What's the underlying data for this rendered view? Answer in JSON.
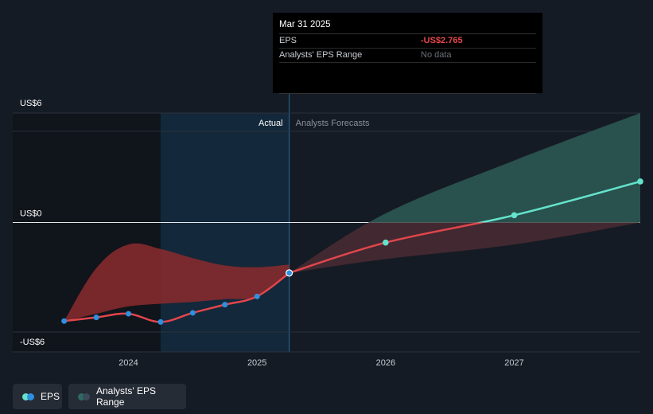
{
  "tooltip": {
    "date": "Mar 31 2025",
    "eps_label": "EPS",
    "eps_value": "-US$2.765",
    "range_label": "Analysts' EPS Range",
    "range_value": "No data"
  },
  "regions": {
    "actual_label": "Actual",
    "forecast_label": "Analysts Forecasts"
  },
  "legend": {
    "eps_label": "EPS",
    "range_label": "Analysts' EPS Range"
  },
  "colors": {
    "background": "#151b24",
    "eps_actual": "#e0464c",
    "eps_forecast": "#64e3cc",
    "actual_point": "#2f8fe0",
    "range_actual": "#8b2a2e",
    "range_forecast": "#2d5a55"
  },
  "chart_data": {
    "type": "line",
    "y_tick_labels": [
      "US$6",
      "US$0",
      "-US$6"
    ],
    "ylim": [
      -6,
      6
    ],
    "x_tick_labels": [
      "2024",
      "2025",
      "2026",
      "2027"
    ],
    "x_ticks": [
      2024.0,
      2025.0,
      2026.0,
      2027.0
    ],
    "xlim": [
      2023.1,
      2027.98
    ],
    "actual_end": 2025.25,
    "highlight_start": 2024.25,
    "series": [
      {
        "name": "EPS",
        "segment": "actual",
        "x": [
          2023.5,
          2023.75,
          2024.0,
          2024.25,
          2024.5,
          2024.75,
          2025.0,
          2025.25
        ],
        "y": [
          -5.4,
          -5.2,
          -5.0,
          -5.45,
          -4.95,
          -4.5,
          -4.05,
          -2.765
        ]
      },
      {
        "name": "EPS",
        "segment": "forecast",
        "x": [
          2025.25,
          2026.0,
          2027.0,
          2027.98
        ],
        "y": [
          -2.765,
          -1.1,
          0.4,
          2.25
        ]
      }
    ],
    "range_actual": {
      "x": [
        2023.5,
        2023.75,
        2024.0,
        2024.25,
        2024.5,
        2024.75,
        2025.0,
        2025.25
      ],
      "high": [
        -5.4,
        -2.5,
        -1.2,
        -1.45,
        -1.95,
        -2.35,
        -2.45,
        -2.3
      ],
      "low": [
        -5.4,
        -5.0,
        -4.6,
        -4.45,
        -4.35,
        -4.2,
        -4.05,
        -2.765
      ]
    },
    "range_forecast": {
      "x": [
        2025.25,
        2026.0,
        2027.0,
        2027.98
      ],
      "high": [
        -2.765,
        0.5,
        3.4,
        6.0
      ],
      "low": [
        -2.765,
        -2.0,
        -1.2,
        0.0
      ]
    },
    "grid": true
  }
}
